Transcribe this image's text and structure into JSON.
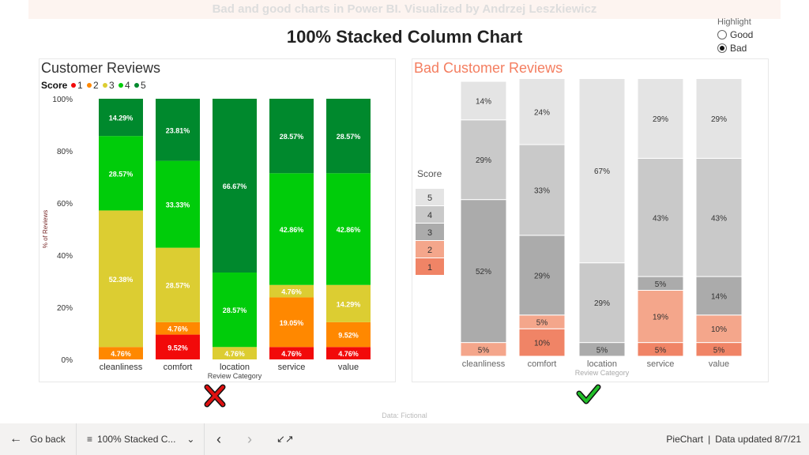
{
  "banner": "Bad and good charts in Power BI. Visualized by Andrzej Leszkiewicz",
  "title": "100% Stacked Column Chart",
  "highlight": {
    "label": "Highlight",
    "options": [
      "Good",
      "Bad"
    ],
    "selected": "Bad"
  },
  "source": "Data: Fictional",
  "footer": {
    "back": "Go back",
    "page": "100% Stacked C...",
    "right_app": "PieChart",
    "updated": "Data updated 8/7/21"
  },
  "chart_data": [
    {
      "type": "bar",
      "stacked": "100%",
      "title": "Customer Reviews",
      "xlabel": "Review Category",
      "ylabel": "% of Reviews",
      "legend_title": "Score",
      "legend": [
        "1",
        "2",
        "3",
        "4",
        "5"
      ],
      "colors": [
        "#f20a0a",
        "#ff8800",
        "#dccd32",
        "#00cc0a",
        "#00892d"
      ],
      "categories": [
        "cleanliness",
        "comfort",
        "location",
        "service",
        "value"
      ],
      "yticks": [
        "0%",
        "20%",
        "40%",
        "60%",
        "80%",
        "100%"
      ],
      "series": [
        {
          "name": "1",
          "values": [
            0,
            9.52,
            0,
            4.76,
            4.76
          ]
        },
        {
          "name": "2",
          "values": [
            4.76,
            4.76,
            0,
            19.05,
            9.52
          ]
        },
        {
          "name": "3",
          "values": [
            52.38,
            28.57,
            4.76,
            4.76,
            14.29
          ]
        },
        {
          "name": "4",
          "values": [
            28.57,
            33.33,
            28.57,
            42.86,
            42.86
          ]
        },
        {
          "name": "5",
          "values": [
            14.29,
            23.81,
            66.67,
            28.57,
            28.57
          ]
        }
      ],
      "labels": [
        [
          "",
          "9.52%",
          "",
          "4.76%",
          "4.76%"
        ],
        [
          "4.76%",
          "4.76%",
          "",
          "19.05%",
          "9.52%"
        ],
        [
          "52.38%",
          "28.57%",
          "4.76%",
          "4.76%",
          "14.29%"
        ],
        [
          "28.57%",
          "33.33%",
          "28.57%",
          "42.86%",
          "42.86%"
        ],
        [
          "14.29%",
          "23.81%",
          "66.67%",
          "28.57%",
          "28.57%"
        ]
      ],
      "verdict": "bad"
    },
    {
      "type": "bar",
      "stacked": "100%",
      "title": "Bad Customer Reviews",
      "xlabel": "Review Category",
      "legend_title": "Score",
      "legend": [
        "1",
        "2",
        "3",
        "4",
        "5"
      ],
      "colors": [
        "#f08466",
        "#f4a68b",
        "#ababab",
        "#c9c9c9",
        "#e4e4e4"
      ],
      "categories": [
        "cleanliness",
        "comfort",
        "location",
        "service",
        "value"
      ],
      "series": [
        {
          "name": "1",
          "values": [
            0,
            10,
            0,
            5,
            5
          ]
        },
        {
          "name": "2",
          "values": [
            5,
            5,
            0,
            19,
            10
          ]
        },
        {
          "name": "3",
          "values": [
            52,
            29,
            5,
            5,
            14
          ]
        },
        {
          "name": "4",
          "values": [
            29,
            33,
            29,
            43,
            43
          ]
        },
        {
          "name": "5",
          "values": [
            14,
            24,
            67,
            29,
            29
          ]
        }
      ],
      "labels": [
        [
          "",
          "10%",
          "",
          "5%",
          "5%"
        ],
        [
          "5%",
          "5%",
          "",
          "19%",
          "10%"
        ],
        [
          "52%",
          "29%",
          "5%",
          "5%",
          "14%"
        ],
        [
          "29%",
          "33%",
          "29%",
          "43%",
          "43%"
        ],
        [
          "14%",
          "24%",
          "67%",
          "29%",
          "29%"
        ]
      ],
      "verdict": "good"
    }
  ]
}
